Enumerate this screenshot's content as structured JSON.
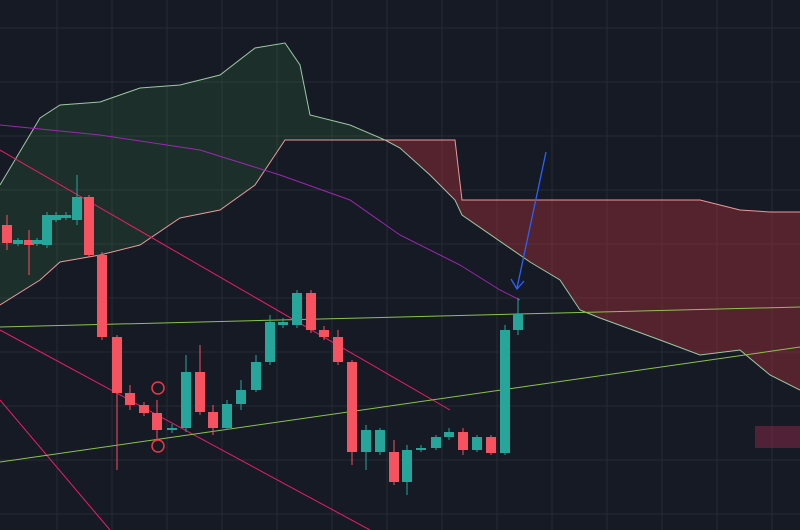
{
  "chart_data": {
    "type": "candlestick",
    "xlim": [
      0,
      800
    ],
    "ylim": [
      0,
      530
    ],
    "xticks": [
      57,
      112,
      167,
      222,
      277,
      332,
      387,
      442,
      497,
      552,
      607,
      662,
      717,
      772
    ],
    "yticks": [
      16,
      70,
      124,
      178,
      232,
      286,
      340,
      394,
      448,
      502
    ],
    "grid": true,
    "background": "#161a25",
    "grid_color": "#262a35",
    "up_color": "#26a69a",
    "down_color": "#f7525f",
    "x": [
      7,
      18,
      29,
      37,
      47,
      56,
      66,
      77,
      89,
      102,
      117,
      130,
      144,
      157,
      172,
      186,
      200,
      213,
      227,
      241,
      256,
      270,
      283,
      297,
      311,
      324,
      338,
      352,
      366,
      380,
      394,
      407,
      421,
      436,
      449,
      463,
      477,
      491,
      505,
      518
    ],
    "open": [
      305,
      286,
      290,
      286,
      285,
      310,
      312,
      310,
      333,
      275,
      193,
      137,
      125,
      117,
      100,
      102,
      158,
      118,
      102,
      126,
      140,
      168,
      205,
      205,
      237,
      200,
      193,
      168,
      78,
      78,
      78,
      48,
      80,
      82,
      93,
      98,
      80,
      93,
      77,
      200
    ],
    "high": [
      315,
      292,
      300,
      292,
      318,
      318,
      318,
      355,
      335,
      278,
      195,
      145,
      128,
      130,
      106,
      175,
      185,
      125,
      130,
      150,
      175,
      215,
      212,
      240,
      240,
      204,
      200,
      170,
      105,
      102,
      90,
      85,
      85,
      95,
      102,
      102,
      95,
      95,
      205,
      232
    ],
    "low": [
      280,
      284,
      255,
      284,
      282,
      308,
      310,
      305,
      273,
      190,
      60,
      120,
      114,
      90,
      97,
      98,
      115,
      95,
      100,
      120,
      138,
      165,
      202,
      202,
      197,
      190,
      165,
      65,
      60,
      75,
      45,
      35,
      78,
      80,
      90,
      75,
      78,
      75,
      75,
      195
    ],
    "close": [
      287,
      290,
      285,
      290,
      315,
      315,
      315,
      333,
      275,
      193,
      137,
      125,
      117,
      100,
      102,
      158,
      118,
      102,
      126,
      140,
      168,
      208,
      208,
      237,
      200,
      193,
      168,
      78,
      100,
      100,
      48,
      80,
      82,
      93,
      98,
      80,
      93,
      77,
      200,
      216
    ],
    "cloud": {
      "x": [
        0,
        40,
        60,
        100,
        140,
        180,
        220,
        255,
        285,
        300,
        310,
        350,
        385,
        400,
        430,
        455,
        462,
        530,
        560,
        580,
        600,
        660,
        700,
        740,
        770,
        800
      ],
      "span_a": [
        345,
        412,
        425,
        428,
        442,
        445,
        455,
        482,
        487,
        465,
        415,
        405,
        390,
        382,
        355,
        330,
        315,
        268,
        250,
        220,
        212,
        190,
        175,
        180,
        155,
        140
      ],
      "span_b": [
        225,
        250,
        268,
        275,
        285,
        312,
        320,
        345,
        390,
        390,
        390,
        390,
        390,
        390,
        390,
        390,
        330,
        330,
        330,
        330,
        330,
        330,
        330,
        320,
        318,
        318
      ],
      "up_fill": "rgba(67,160,71,0.16)",
      "down_fill": "rgba(190,50,60,0.38)",
      "span_a_color": "#9cc7a2",
      "span_b_color": "#e99a9a"
    },
    "lines": [
      {
        "color": "#9c27b0",
        "x": [
          0,
          100,
          200,
          280,
          350,
          400,
          460,
          500,
          520
        ],
        "values": [
          405,
          395,
          380,
          355,
          330,
          295,
          265,
          240,
          230
        ]
      },
      {
        "color": "#e91e63",
        "x": [
          0,
          450
        ],
        "values": [
          380,
          120
        ]
      },
      {
        "color": "#e91e63",
        "x": [
          0,
          370
        ],
        "values": [
          200,
          0
        ]
      },
      {
        "color": "#e91e63",
        "x": [
          0,
          110
        ],
        "values": [
          130,
          0
        ]
      },
      {
        "color": "#8bc34a",
        "x": [
          0,
          800
        ],
        "values": [
          203,
          223
        ]
      },
      {
        "color": "#8bc34a",
        "x": [
          0,
          800
        ],
        "values": [
          68,
          183
        ]
      }
    ]
  }
}
